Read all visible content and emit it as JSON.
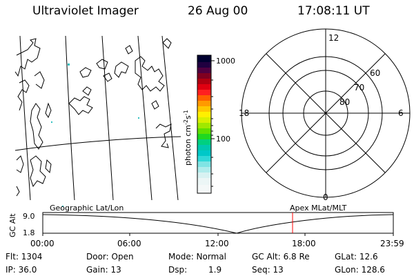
{
  "header": {
    "instrument": "Ultraviolet Imager",
    "date": "26 Aug 00",
    "time": "17:08:11 UT"
  },
  "colorbar": {
    "unit": "photon cm",
    "unit_exp": "-2",
    "unit_s": "s",
    "unit_s_exp": "-1",
    "ticks": [
      "1000",
      "100"
    ]
  },
  "polar_plot": {
    "mlt_labels": [
      "12",
      "18",
      "6",
      "0"
    ],
    "lat_labels": [
      "60",
      "70",
      "80"
    ]
  },
  "timeline": {
    "left_label": "Geographic Lat/Lon",
    "right_label": "Apex MLat/MLT",
    "axis_label": "GC Alt",
    "y_ticks": [
      "9.0",
      "1.8"
    ],
    "x_ticks": [
      "00:00",
      "06:00",
      "12:00",
      "18:00",
      "23:59"
    ],
    "marker_color": "#ff0000"
  },
  "info": {
    "flt": "Flt: 1304",
    "ip": "IP: 36.0",
    "door": "Door: Open",
    "gain": "Gain: 13",
    "mode": "Mode: Normal",
    "dsp_label": "Dsp:",
    "dsp_value": "1.9",
    "gcalt": "GC Alt: 6.8 Re",
    "seq": "Seq: 13",
    "glat": "GLat:  12.6",
    "glon": "GLon: 128.6"
  }
}
